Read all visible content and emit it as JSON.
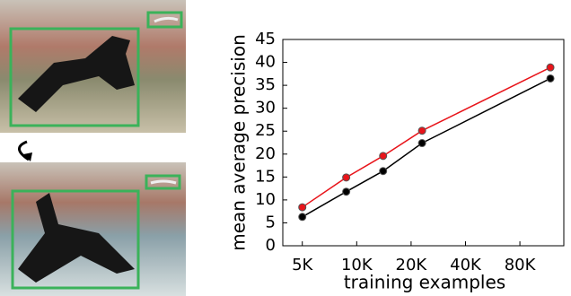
{
  "chart_data": {
    "type": "line",
    "x": [
      5000,
      8750,
      14000,
      23000,
      118000
    ],
    "xscale": "log",
    "xlim": [
      3900,
      140000
    ],
    "xticks": [
      {
        "value": 5000,
        "label": "5K"
      },
      {
        "value": 10000,
        "label": "10K"
      },
      {
        "value": 20000,
        "label": "20K"
      },
      {
        "value": 40000,
        "label": "40K"
      },
      {
        "value": 80000,
        "label": "80K"
      }
    ],
    "ylim": [
      0,
      45
    ],
    "yticks": [
      0,
      5,
      10,
      15,
      20,
      25,
      30,
      35,
      40,
      45
    ],
    "xlabel": "training examples",
    "ylabel": "mean average precision",
    "series": [
      {
        "color": "#e8141a",
        "values": [
          8.4,
          14.9,
          19.6,
          25.1,
          38.9
        ]
      },
      {
        "color": "#000000",
        "values": [
          6.3,
          11.8,
          16.3,
          22.4,
          36.5
        ]
      }
    ]
  }
}
